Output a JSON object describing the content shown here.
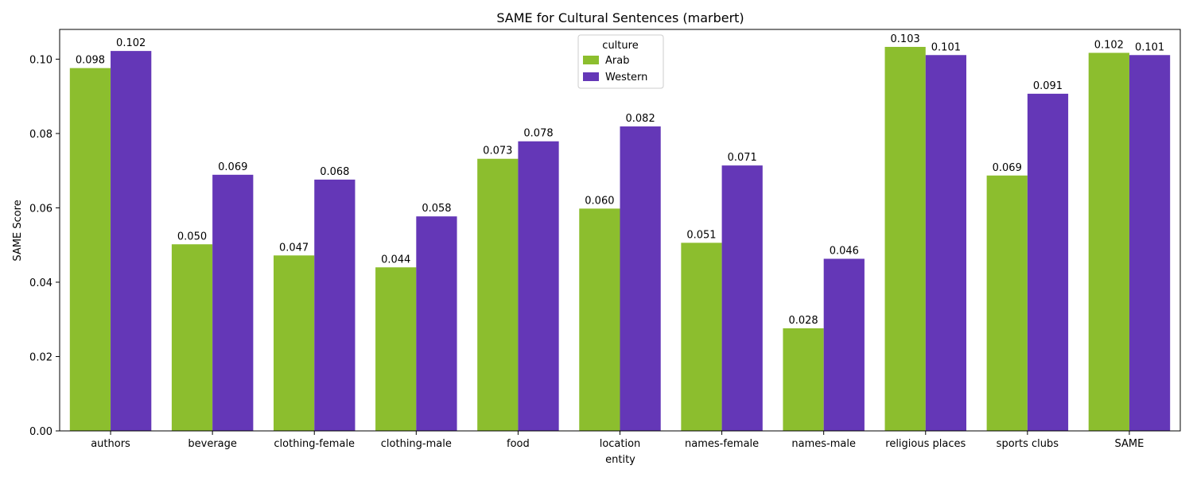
{
  "chart_data": {
    "type": "bar",
    "title": "SAME for Cultural Sentences (marbert)",
    "xlabel": "entity",
    "ylabel": "SAME Score",
    "ylim": [
      0,
      0.108
    ],
    "yticks": [
      "0.00",
      "0.02",
      "0.04",
      "0.06",
      "0.08",
      "0.10"
    ],
    "grid": false,
    "legend": {
      "title": "culture",
      "placement": "top-center"
    },
    "categories": [
      "authors",
      "beverage",
      "clothing-female",
      "clothing-male",
      "food",
      "location",
      "names-female",
      "names-male",
      "religious places",
      "sports clubs",
      "SAME"
    ],
    "series": [
      {
        "name": "Arab",
        "color": "#8cbe2e",
        "values": [
          0.0976,
          0.0502,
          0.0472,
          0.044,
          0.0732,
          0.0598,
          0.0506,
          0.0276,
          0.1033,
          0.0687,
          0.1017
        ],
        "labels": [
          "0.098",
          "0.050",
          "0.047",
          "0.044",
          "0.073",
          "0.060",
          "0.051",
          "0.028",
          "0.103",
          "0.069",
          "0.102"
        ]
      },
      {
        "name": "Western",
        "color": "#6437b7",
        "values": [
          0.1022,
          0.0689,
          0.0676,
          0.0577,
          0.0779,
          0.0819,
          0.0714,
          0.0463,
          0.1011,
          0.0907,
          0.1011
        ],
        "labels": [
          "0.102",
          "0.069",
          "0.068",
          "0.058",
          "0.078",
          "0.082",
          "0.071",
          "0.046",
          "0.101",
          "0.091",
          "0.101"
        ]
      }
    ]
  }
}
